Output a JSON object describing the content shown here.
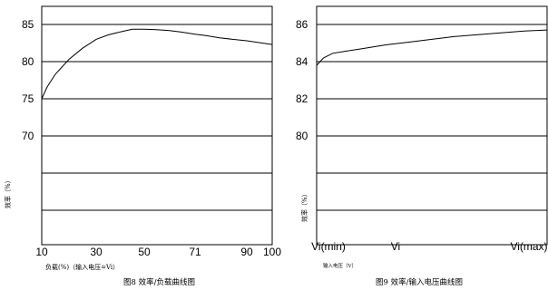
{
  "chart_data": [
    {
      "type": "line",
      "title": "",
      "caption": "图8 效率/负载曲线图",
      "xlabel": "负载(%)（输入电压=Vi）",
      "ylabel": "效率（%）",
      "x_ticks": [
        "10",
        "30",
        "50",
        "71",
        "90",
        "100"
      ],
      "y_ticks": [
        "85",
        "80",
        "75",
        "70"
      ],
      "grid": true,
      "series": [
        {
          "x": [
            10,
            12,
            15,
            20,
            25,
            30,
            35,
            40,
            45,
            50,
            55,
            60,
            65,
            71,
            75,
            80,
            90,
            100
          ],
          "y": [
            75.0,
            76.6,
            78.3,
            80.3,
            81.8,
            83.0,
            83.6,
            84.0,
            84.35,
            84.35,
            84.3,
            84.2,
            84.0,
            83.7,
            83.5,
            83.2,
            82.8,
            82.3
          ]
        }
      ]
    },
    {
      "type": "line",
      "title": "",
      "caption": "图9 效率/输入电压曲线图",
      "xlabel": "输入电压（V）",
      "ylabel": "效率（%）",
      "x_ticks": [
        "Vi(min)",
        "Vi",
        "Vi(max)"
      ],
      "y_ticks": [
        "86",
        "84",
        "82",
        "80"
      ],
      "grid": true,
      "series": [
        {
          "x": [
            0,
            0.03,
            0.07,
            0.12,
            0.2,
            0.3,
            0.4,
            0.5,
            0.6,
            0.7,
            0.8,
            0.9,
            1.0
          ],
          "y": [
            83.8,
            84.2,
            84.45,
            84.55,
            84.7,
            84.9,
            85.05,
            85.2,
            85.35,
            85.45,
            85.55,
            85.65,
            85.7
          ]
        }
      ]
    }
  ]
}
